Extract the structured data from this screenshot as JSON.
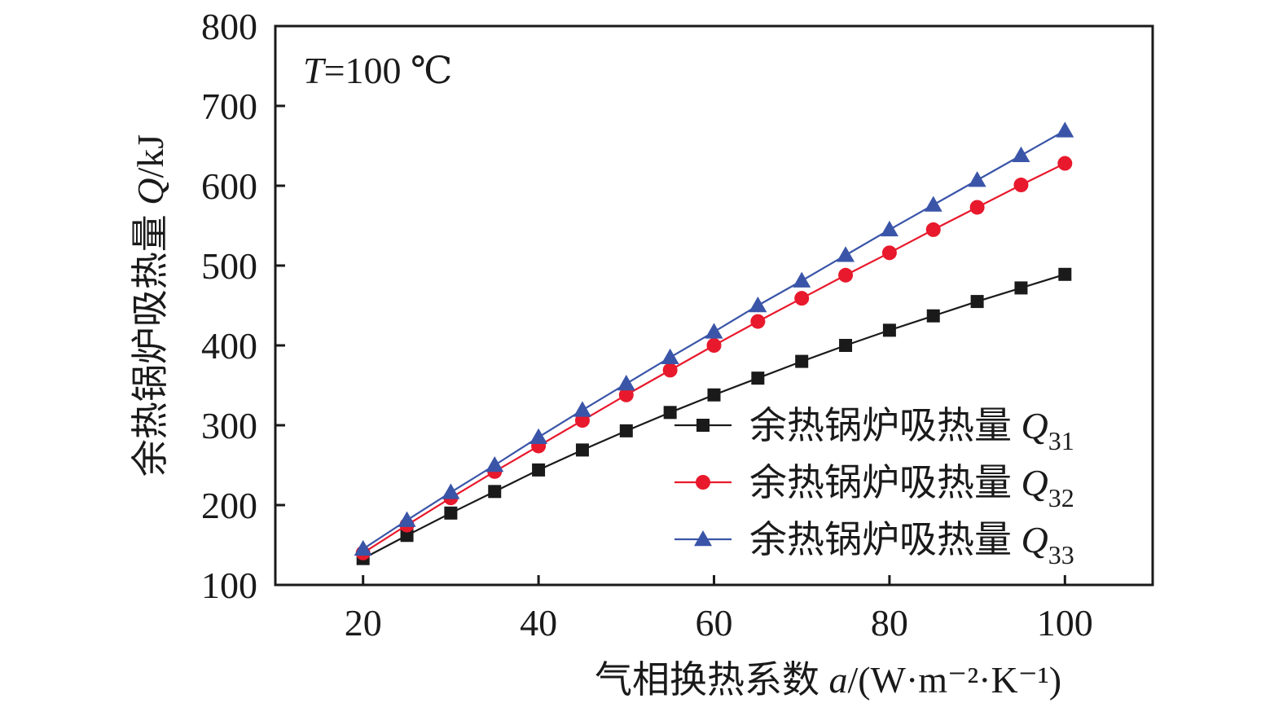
{
  "chart_data": {
    "type": "line",
    "annotation": {
      "var": "T",
      "rest": "=100 ℃"
    },
    "xlabel": {
      "text": "气相换热系数 ",
      "var": "a",
      "unit": "/(W·m⁻²·K⁻¹)"
    },
    "ylabel": {
      "text": "余热锅炉吸热量 ",
      "var": "Q",
      "unit": "/kJ"
    },
    "xlim": [
      10,
      110
    ],
    "ylim": [
      100,
      800
    ],
    "xticks": [
      20,
      40,
      60,
      80,
      100
    ],
    "yticks": [
      100,
      200,
      300,
      400,
      500,
      600,
      700,
      800
    ],
    "x": [
      20,
      25,
      30,
      35,
      40,
      45,
      50,
      55,
      60,
      65,
      70,
      75,
      80,
      85,
      90,
      95,
      100
    ],
    "legend_position": "lower-right",
    "series": [
      {
        "name": "余热锅炉吸热量 ",
        "name_var": "Q",
        "name_sub": "31",
        "marker": "square",
        "color": "#1a1a1a",
        "line_color": "#1a1a1a",
        "values": [
          133,
          162,
          190,
          217,
          244,
          269,
          293,
          316,
          338,
          359,
          380,
          400,
          419,
          437,
          455,
          472,
          489
        ]
      },
      {
        "name": "余热锅炉吸热量 ",
        "name_var": "Q",
        "name_sub": "32",
        "marker": "circle",
        "color": "#e8192c",
        "line_color": "#e8192c",
        "values": [
          140,
          175,
          209,
          242,
          274,
          306,
          338,
          369,
          400,
          430,
          459,
          488,
          516,
          545,
          573,
          601,
          628
        ]
      },
      {
        "name": "余热锅炉吸热量 ",
        "name_var": "Q",
        "name_sub": "33",
        "marker": "triangle",
        "color": "#3a55a8",
        "line_color": "#3a55a8",
        "values": [
          145,
          181,
          216,
          250,
          285,
          319,
          352,
          385,
          417,
          450,
          481,
          513,
          545,
          576,
          607,
          638,
          669
        ]
      }
    ]
  }
}
